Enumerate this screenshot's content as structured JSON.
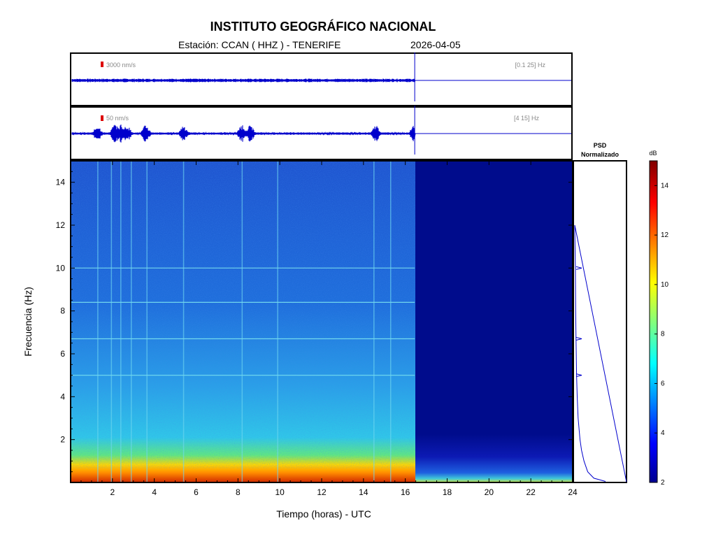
{
  "header": {
    "title": "INSTITUTO GEOGRÁFICO NACIONAL",
    "station": "Estación:  CCAN ( HHZ ) - TENERIFE",
    "date": "2026-04-05"
  },
  "colors": {
    "trace": "#0000cc",
    "scale_marker": "#dd0000",
    "frame": "#000000"
  },
  "chart_data": [
    {
      "type": "line",
      "panel": "broadband-seismogram",
      "amplitude_scale": "3000 nm/s",
      "filter_band": "[0.1 25] Hz",
      "x_range_hours": [
        0,
        24
      ],
      "data_end_hour": 16.45
    },
    {
      "type": "line",
      "panel": "filtered-seismogram",
      "amplitude_scale": "50 nm/s",
      "filter_band": "[4 15] Hz",
      "x_range_hours": [
        0,
        24
      ],
      "data_end_hour": 16.45,
      "events_hours": [
        1.3,
        2.1,
        2.4,
        2.7,
        3.6,
        5.4,
        8.2,
        8.6,
        14.6,
        16.4
      ]
    },
    {
      "type": "heatmap",
      "panel": "spectrogram",
      "xlabel": "Tiempo (horas) - UTC",
      "ylabel": "Frecuencia  (Hz)",
      "xlim": [
        0,
        24
      ],
      "ylim": [
        0,
        15
      ],
      "x_ticks": [
        2,
        4,
        6,
        8,
        10,
        12,
        14,
        16,
        18,
        20,
        22,
        24
      ],
      "y_ticks": [
        2,
        4,
        6,
        8,
        10,
        12,
        14
      ],
      "data_end_hour": 16.45,
      "persistent_lines_hz": [
        5.0,
        6.7,
        8.4,
        10.0
      ],
      "vertical_bursts_hours": [
        1.3,
        1.95,
        2.4,
        2.9,
        3.65,
        5.4,
        8.2,
        9.9,
        14.5,
        15.3
      ]
    },
    {
      "type": "line",
      "panel": "psd",
      "title_line1": "PSD",
      "title_line2": "Normalizado",
      "freq_hz": [
        0.05,
        0.2,
        0.5,
        1.0,
        1.5,
        2.0,
        3.0,
        4.0,
        5.0,
        6.7,
        8.0,
        10.0,
        11.0,
        12.0
      ],
      "psd_norm": [
        1.0,
        0.62,
        0.42,
        0.3,
        0.22,
        0.17,
        0.11,
        0.08,
        0.06,
        0.04,
        0.03,
        0.02,
        0.01,
        0.0
      ],
      "peaks_hz": [
        5.0,
        6.7,
        10.0
      ]
    },
    {
      "type": "heatmap",
      "panel": "colorbar",
      "unit": "dB",
      "range": [
        2,
        15
      ],
      "ticks": [
        2,
        4,
        6,
        8,
        10,
        12,
        14
      ]
    }
  ]
}
